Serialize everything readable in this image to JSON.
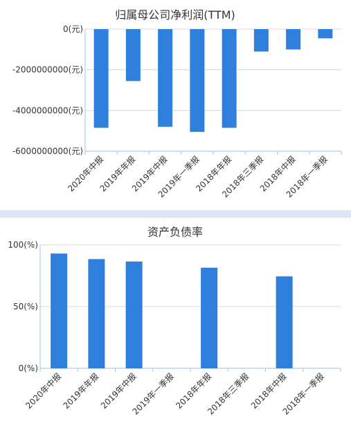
{
  "charts": [
    {
      "chart_data": {
        "type": "bar",
        "title": "归属母公司净利润(TTM)",
        "categories": [
          "2020年中报",
          "2019年年报",
          "2019年中报",
          "2019年一季报",
          "2018年年报",
          "2018年三季报",
          "2018年中报",
          "2018年一季报"
        ],
        "values": [
          -4850000000,
          -2550000000,
          -4800000000,
          -5050000000,
          -4850000000,
          -1100000000,
          -1000000000,
          -450000000
        ],
        "ylim": [
          -6000000000,
          0
        ],
        "yticks": [
          0,
          -2000000000,
          -4000000000,
          -6000000000
        ],
        "ytick_labels": [
          "0(元)",
          "-2000000000(元)",
          "-4000000000(元)",
          "-6000000000(元)"
        ],
        "grid": true,
        "color": "#2f80dc"
      }
    },
    {
      "chart_data": {
        "type": "bar",
        "title": "资产负债率",
        "categories": [
          "2020年中报",
          "2019年年报",
          "2019年中报",
          "2019年一季报",
          "2018年年报",
          "2018年三季报",
          "2018年中报",
          "2018年一季报"
        ],
        "values": [
          93,
          88.5,
          86.5,
          null,
          81.5,
          null,
          74.5,
          null
        ],
        "ylim": [
          0,
          100
        ],
        "yticks": [
          100,
          50,
          0
        ],
        "ytick_labels": [
          "100(%)",
          "50(%)",
          "0(%)"
        ],
        "grid": true,
        "color": "#2f80dc"
      }
    }
  ]
}
